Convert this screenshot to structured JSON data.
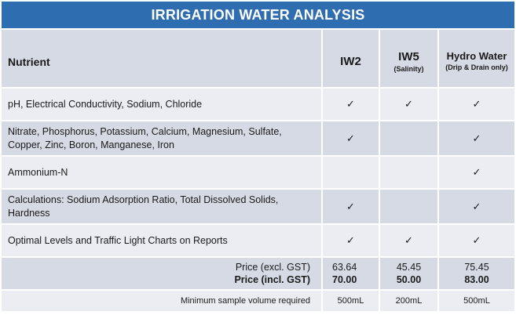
{
  "title": "IRRIGATION WATER ANALYSIS",
  "header": {
    "nutrient": "Nutrient",
    "cols": [
      {
        "name": "IW2",
        "sub": ""
      },
      {
        "name": "IW5",
        "sub": "(Salinity)"
      },
      {
        "name": "Hydro Water",
        "sub": "(Drip & Drain only)"
      }
    ]
  },
  "rows": [
    {
      "label": "pH, Electrical Conductivity, Sodium, Chloride",
      "iw2": "✓",
      "iw5": "✓",
      "hydro": "✓"
    },
    {
      "label": "Nitrate, Phosphorus, Potassium, Calcium, Magnesium, Sulfate, Copper, Zinc, Boron, Manganese, Iron",
      "iw2": "✓",
      "iw5": "",
      "hydro": "✓"
    },
    {
      "label": "Ammonium-N",
      "iw2": "",
      "iw5": "",
      "hydro": "✓"
    },
    {
      "label": "Calculations: Sodium Adsorption Ratio, Total Dissolved Solids, Hardness",
      "iw2": "✓",
      "iw5": "",
      "hydro": "✓"
    },
    {
      "label": "Optimal Levels  and Traffic Light Charts on Reports",
      "iw2": "✓",
      "iw5": "✓",
      "hydro": "✓"
    }
  ],
  "price": {
    "excl_label": "Price (excl. GST)",
    "incl_label": "Price (incl. GST)",
    "iw2_excl": "63.64",
    "iw2_incl": "70.00",
    "iw5_excl": "45.45",
    "iw5_incl": "50.00",
    "hydro_excl": "75.45",
    "hydro_incl": "83.00"
  },
  "volume": {
    "label": "Minimum sample volume required",
    "iw2": "500mL",
    "iw5": "200mL",
    "hydro": "500mL"
  }
}
